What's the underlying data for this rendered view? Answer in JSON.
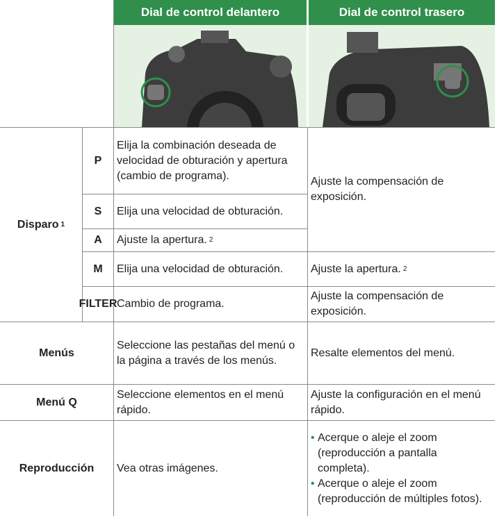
{
  "header": {
    "columns": [
      "Dial de control delantero",
      "Dial de control trasero"
    ]
  },
  "shooting": {
    "label": "Disparo",
    "note": "1",
    "modes": [
      {
        "mode": "P",
        "front": "Elija la combinación deseada de velocidad de obturación y apertura (cambio de programa)."
      },
      {
        "mode": "S",
        "front": "Elija una velocidad de obturación."
      },
      {
        "mode": "A",
        "front": "Ajuste la apertura.",
        "front_note": "2"
      },
      {
        "mode": "M",
        "front": "Elija una velocidad de obturación.",
        "rear": "Ajuste la apertura.",
        "rear_note": "2"
      },
      {
        "mode": "FILTER",
        "front": "Cambio de programa.",
        "rear": "Ajuste la compensación de exposición."
      }
    ],
    "psa_rear": "Ajuste la compensación de exposición."
  },
  "rows": [
    {
      "label": "Menús",
      "front": "Seleccione las pestañas del menú o la página a través de los menús.",
      "rear": "Resalte elementos del menú."
    },
    {
      "label": "Menú Q",
      "front": "Seleccione elementos en el menú rápido.",
      "rear": "Ajuste la configuración en el menú rápido."
    },
    {
      "label": "Reproducción",
      "front": "Vea otras imágenes.",
      "rear": [
        "Acerque o aleje el zoom (reproducción a pantalla completa).",
        "Acerque o aleje el zoom (reproducción de múltiples fotos)."
      ]
    }
  ]
}
